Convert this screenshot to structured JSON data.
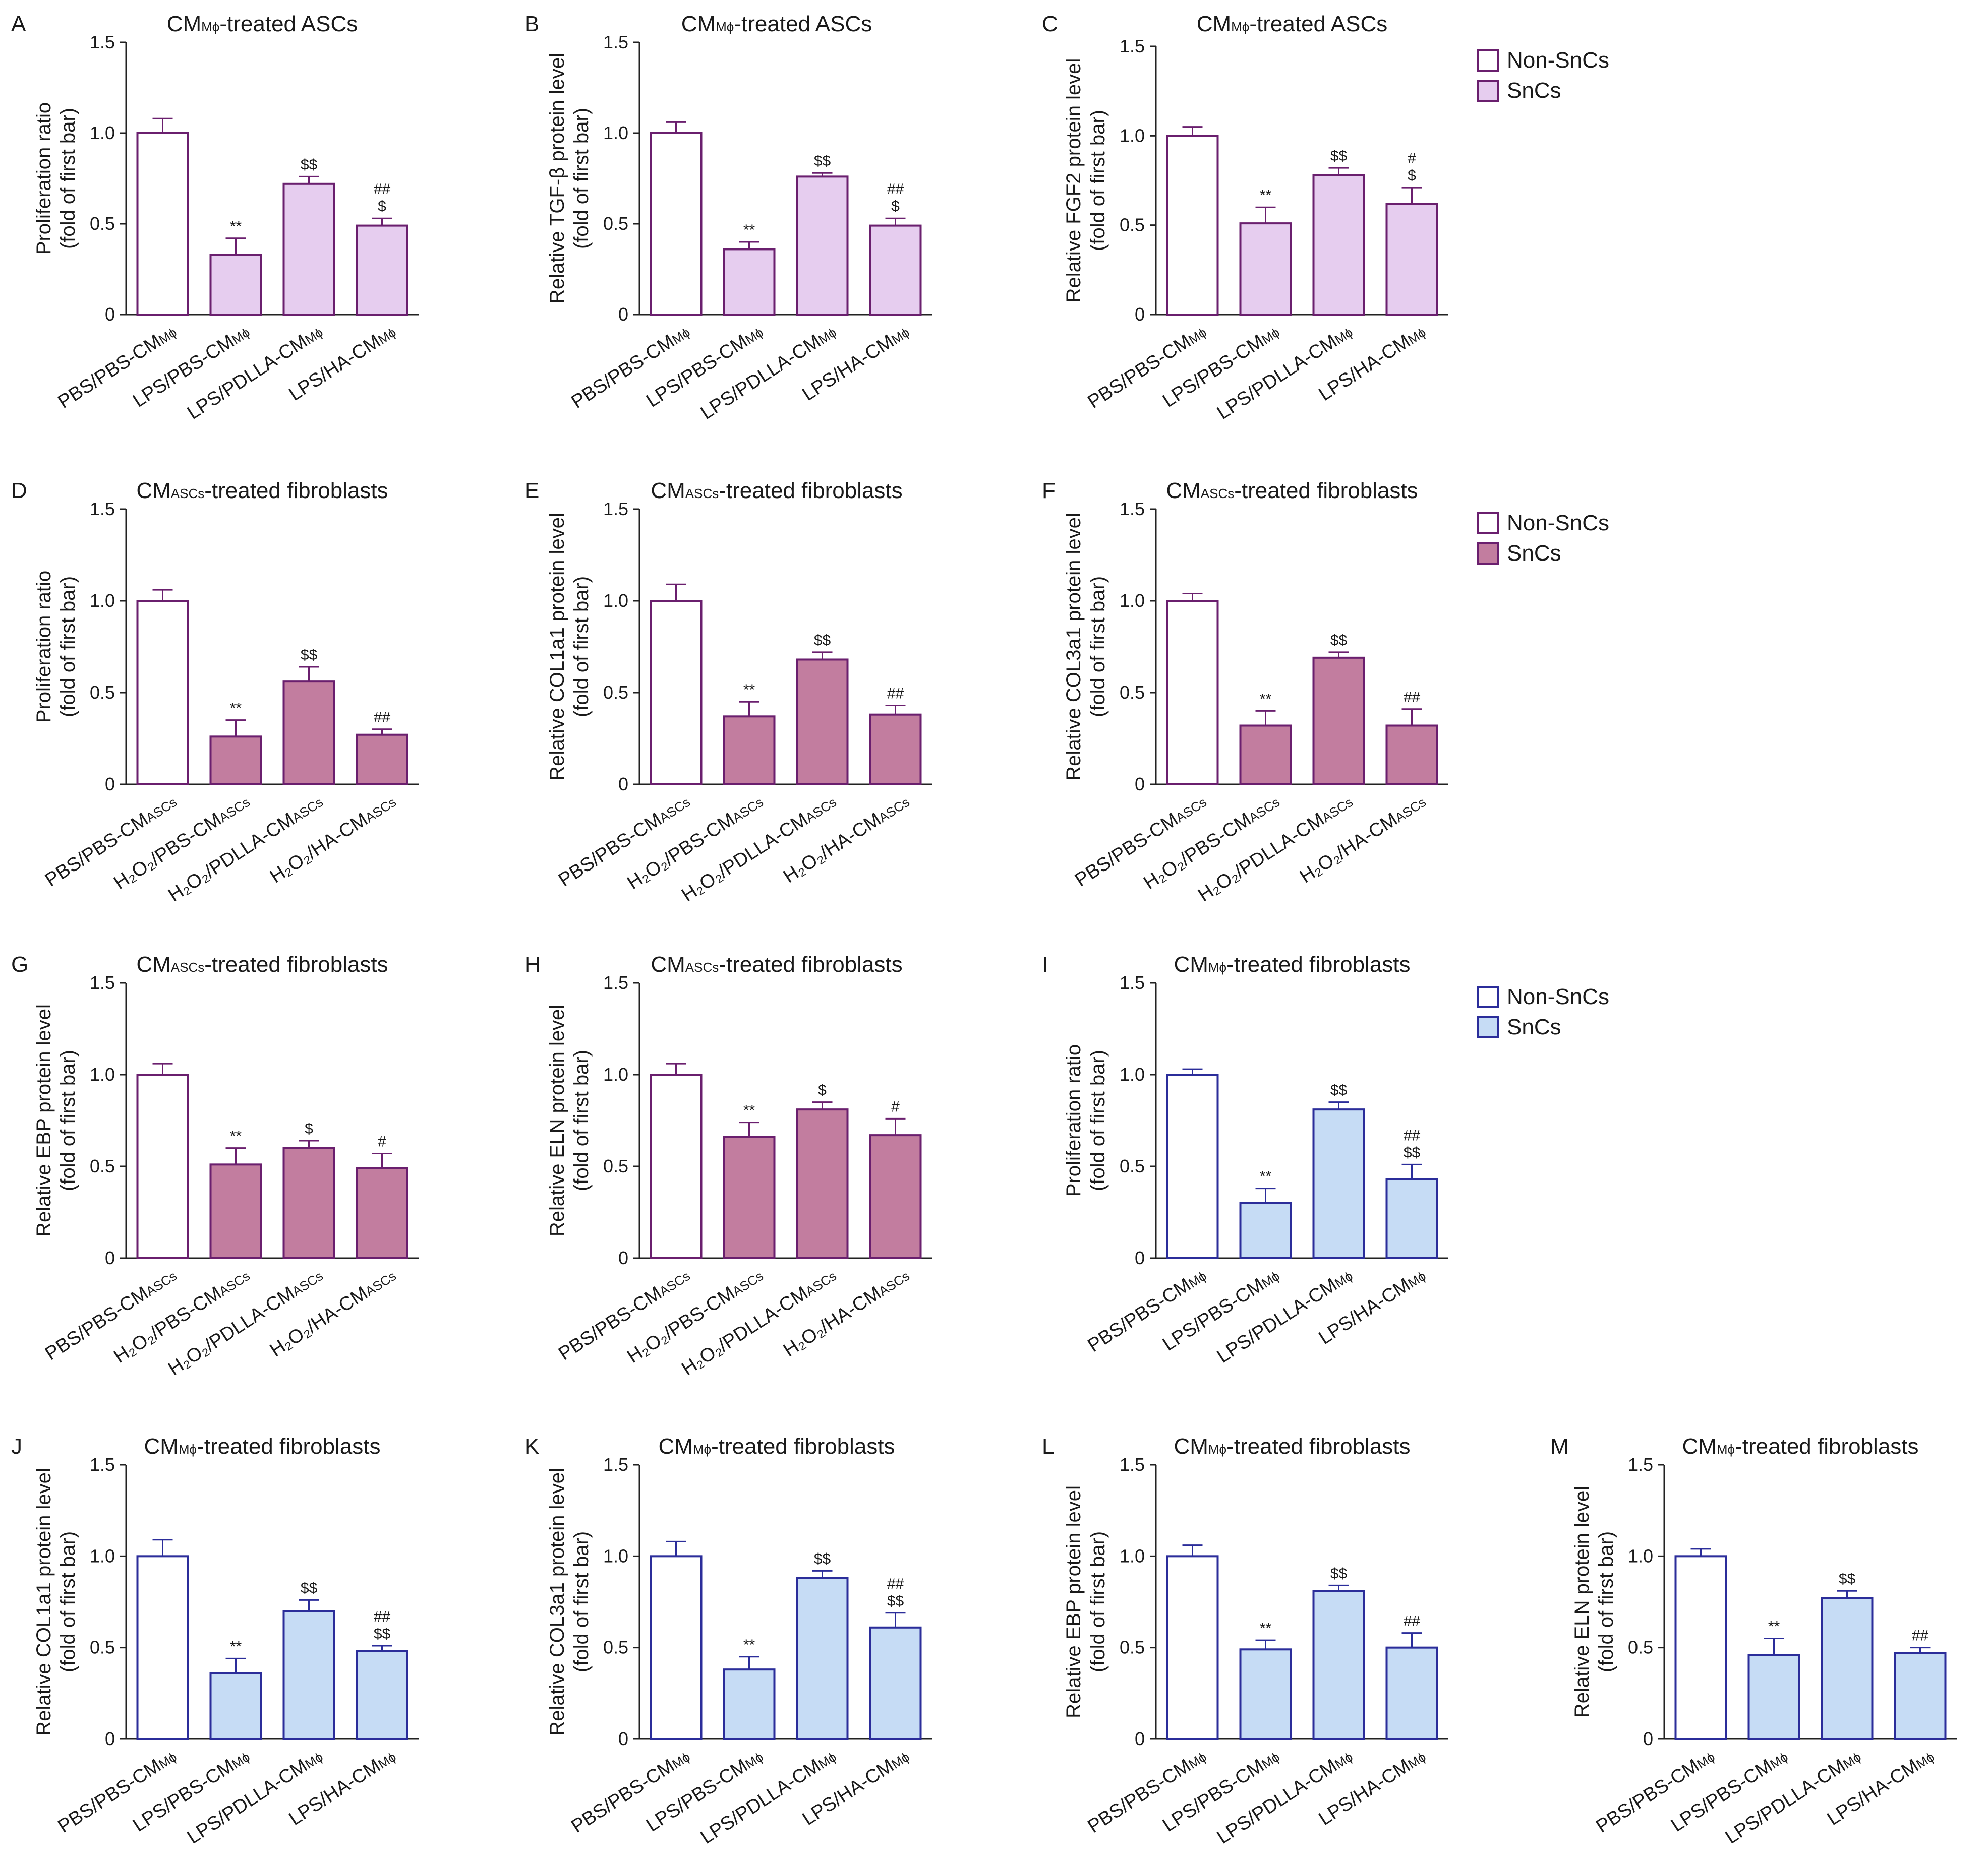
{
  "colors": {
    "purple_edge": "#6a1f6e",
    "lilac_fill": "#e6cdef",
    "mauve_fill": "#c27d9f",
    "blue_edge": "#2b2d9a",
    "blue_fill": "#c6dcf5"
  },
  "legends": [
    {
      "panel": "C",
      "items": [
        {
          "label": "Non-SnCs"
        },
        {
          "label": "SnCs"
        }
      ]
    },
    {
      "panel": "F",
      "items": [
        {
          "label": "Non-SnCs"
        },
        {
          "label": "SnCs"
        }
      ]
    },
    {
      "panel": "I",
      "items": [
        {
          "label": "Non-SnCs"
        },
        {
          "label": "SnCs"
        }
      ]
    }
  ],
  "chart_data": [
    {
      "panel": "A",
      "type": "bar",
      "title_prefix": "CM",
      "title_sub": "Mϕ",
      "title_suffix": "-treated ASCs",
      "ylabel": [
        "Proliferation ratio",
        "(fold of first bar)"
      ],
      "ylim": [
        0,
        1.5
      ],
      "yticks": [
        "0",
        "0.5",
        "1.0",
        "1.5"
      ],
      "categories": [
        [
          "PBS/PBS-CM",
          "Mϕ"
        ],
        [
          "LPS/PBS-CM",
          "Mϕ"
        ],
        [
          "LPS/PDLLA-CM",
          "Mϕ"
        ],
        [
          "LPS/HA-CM",
          "Mϕ"
        ]
      ],
      "values": [
        1.0,
        0.33,
        0.72,
        0.49
      ],
      "errors": [
        0.08,
        0.09,
        0.04,
        0.04
      ],
      "annotations": [
        [],
        [
          "**"
        ],
        [
          "$$"
        ],
        [
          "##",
          "$"
        ]
      ]
    },
    {
      "panel": "B",
      "type": "bar",
      "title_prefix": "CM",
      "title_sub": "Mϕ",
      "title_suffix": "-treated ASCs",
      "ylabel": [
        "Relative TGF-β protein level",
        "(fold of first bar)"
      ],
      "ylim": [
        0,
        1.5
      ],
      "yticks": [
        "0",
        "0.5",
        "1.0",
        "1.5"
      ],
      "categories": [
        [
          "PBS/PBS-CM",
          "Mϕ"
        ],
        [
          "LPS/PBS-CM",
          "Mϕ"
        ],
        [
          "LPS/PDLLA-CM",
          "Mϕ"
        ],
        [
          "LPS/HA-CM",
          "Mϕ"
        ]
      ],
      "values": [
        1.0,
        0.36,
        0.76,
        0.49
      ],
      "errors": [
        0.06,
        0.04,
        0.02,
        0.04
      ],
      "annotations": [
        [],
        [
          "**"
        ],
        [
          "$$"
        ],
        [
          "##",
          "$"
        ]
      ]
    },
    {
      "panel": "C",
      "type": "bar",
      "title_prefix": "CM",
      "title_sub": "Mϕ",
      "title_suffix": "-treated ASCs",
      "ylabel": [
        "Relative FGF2 protein level",
        "(fold of first bar)"
      ],
      "ylim": [
        0,
        1.5
      ],
      "yticks": [
        "0",
        "0.5",
        "1.0",
        "1.5"
      ],
      "categories": [
        [
          "PBS/PBS-CM",
          "Mϕ"
        ],
        [
          "LPS/PBS-CM",
          "Mϕ"
        ],
        [
          "LPS/PDLLA-CM",
          "Mϕ"
        ],
        [
          "LPS/HA-CM",
          "Mϕ"
        ]
      ],
      "values": [
        1.0,
        0.51,
        0.78,
        0.62
      ],
      "errors": [
        0.05,
        0.09,
        0.04,
        0.09
      ],
      "annotations": [
        [],
        [
          "**"
        ],
        [
          "$$"
        ],
        [
          "#",
          "$"
        ]
      ]
    },
    {
      "panel": "D",
      "type": "bar",
      "title_prefix": "CM",
      "title_sub": "ASCs",
      "title_suffix": "-treated fibroblasts",
      "ylabel": [
        "Proliferation ratio",
        "(fold of first bar)"
      ],
      "ylim": [
        0,
        1.5
      ],
      "yticks": [
        "0",
        "0.5",
        "1.0",
        "1.5"
      ],
      "categories": [
        [
          "PBS/PBS-CM",
          "ASCs"
        ],
        [
          "H₂O₂/PBS-CM",
          "ASCs"
        ],
        [
          "H₂O₂/PDLLA-CM",
          "ASCs"
        ],
        [
          "H₂O₂/HA-CM",
          "ASCs"
        ]
      ],
      "values": [
        1.0,
        0.26,
        0.56,
        0.27
      ],
      "errors": [
        0.06,
        0.09,
        0.08,
        0.03
      ],
      "annotations": [
        [],
        [
          "**"
        ],
        [
          "$$"
        ],
        [
          "##"
        ]
      ]
    },
    {
      "panel": "E",
      "type": "bar",
      "title_prefix": "CM",
      "title_sub": "ASCs",
      "title_suffix": "-treated fibroblasts",
      "ylabel": [
        "Relative COL1a1 protein level",
        "(fold of first bar)"
      ],
      "ylim": [
        0,
        1.5
      ],
      "yticks": [
        "0",
        "0.5",
        "1.0",
        "1.5"
      ],
      "categories": [
        [
          "PBS/PBS-CM",
          "ASCs"
        ],
        [
          "H₂O₂/PBS-CM",
          "ASCs"
        ],
        [
          "H₂O₂/PDLLA-CM",
          "ASCs"
        ],
        [
          "H₂O₂/HA-CM",
          "ASCs"
        ]
      ],
      "values": [
        1.0,
        0.37,
        0.68,
        0.38
      ],
      "errors": [
        0.09,
        0.08,
        0.04,
        0.05
      ],
      "annotations": [
        [],
        [
          "**"
        ],
        [
          "$$"
        ],
        [
          "##"
        ]
      ]
    },
    {
      "panel": "F",
      "type": "bar",
      "title_prefix": "CM",
      "title_sub": "ASCs",
      "title_suffix": "-treated fibroblasts",
      "ylabel": [
        "Relative COL3a1 protein level",
        "(fold of first bar)"
      ],
      "ylim": [
        0,
        1.5
      ],
      "yticks": [
        "0",
        "0.5",
        "1.0",
        "1.5"
      ],
      "categories": [
        [
          "PBS/PBS-CM",
          "ASCs"
        ],
        [
          "H₂O₂/PBS-CM",
          "ASCs"
        ],
        [
          "H₂O₂/PDLLA-CM",
          "ASCs"
        ],
        [
          "H₂O₂/HA-CM",
          "ASCs"
        ]
      ],
      "values": [
        1.0,
        0.32,
        0.69,
        0.32
      ],
      "errors": [
        0.04,
        0.08,
        0.03,
        0.09
      ],
      "annotations": [
        [],
        [
          "**"
        ],
        [
          "$$"
        ],
        [
          "##"
        ]
      ]
    },
    {
      "panel": "G",
      "type": "bar",
      "title_prefix": "CM",
      "title_sub": "ASCs",
      "title_suffix": "-treated fibroblasts",
      "ylabel": [
        "Relative EBP protein level",
        "(fold of first bar)"
      ],
      "ylim": [
        0,
        1.5
      ],
      "yticks": [
        "0",
        "0.5",
        "1.0",
        "1.5"
      ],
      "categories": [
        [
          "PBS/PBS-CM",
          "ASCs"
        ],
        [
          "H₂O₂/PBS-CM",
          "ASCs"
        ],
        [
          "H₂O₂/PDLLA-CM",
          "ASCs"
        ],
        [
          "H₂O₂/HA-CM",
          "ASCs"
        ]
      ],
      "values": [
        1.0,
        0.51,
        0.6,
        0.49
      ],
      "errors": [
        0.06,
        0.09,
        0.04,
        0.08
      ],
      "annotations": [
        [],
        [
          "**"
        ],
        [
          "$"
        ],
        [
          "#"
        ]
      ]
    },
    {
      "panel": "H",
      "type": "bar",
      "title_prefix": "CM",
      "title_sub": "ASCs",
      "title_suffix": "-treated fibroblasts",
      "ylabel": [
        "Relative ELN protein level",
        "(fold of first bar)"
      ],
      "ylim": [
        0,
        1.5
      ],
      "yticks": [
        "0",
        "0.5",
        "1.0",
        "1.5"
      ],
      "categories": [
        [
          "PBS/PBS-CM",
          "ASCs"
        ],
        [
          "H₂O₂/PBS-CM",
          "ASCs"
        ],
        [
          "H₂O₂/PDLLA-CM",
          "ASCs"
        ],
        [
          "H₂O₂/HA-CM",
          "ASCs"
        ]
      ],
      "values": [
        1.0,
        0.66,
        0.81,
        0.67
      ],
      "errors": [
        0.06,
        0.08,
        0.04,
        0.09
      ],
      "annotations": [
        [],
        [
          "**"
        ],
        [
          "$"
        ],
        [
          "#"
        ]
      ]
    },
    {
      "panel": "I",
      "type": "bar",
      "title_prefix": "CM",
      "title_sub": "Mϕ",
      "title_suffix": "-treated fibroblasts",
      "ylabel": [
        "Proliferation ratio",
        "(fold of first bar)"
      ],
      "ylim": [
        0,
        1.5
      ],
      "yticks": [
        "0",
        "0.5",
        "1.0",
        "1.5"
      ],
      "categories": [
        [
          "PBS/PBS-CM",
          "Mϕ"
        ],
        [
          "LPS/PBS-CM",
          "Mϕ"
        ],
        [
          "LPS/PDLLA-CM",
          "Mϕ"
        ],
        [
          "LPS/HA-CM",
          "Mϕ"
        ]
      ],
      "values": [
        1.0,
        0.3,
        0.81,
        0.43
      ],
      "errors": [
        0.03,
        0.08,
        0.04,
        0.08
      ],
      "annotations": [
        [],
        [
          "**"
        ],
        [
          "$$"
        ],
        [
          "##",
          "$$"
        ]
      ]
    },
    {
      "panel": "J",
      "type": "bar",
      "title_prefix": "CM",
      "title_sub": "Mϕ",
      "title_suffix": "-treated fibroblasts",
      "ylabel": [
        "Relative COL1a1 protein level",
        "(fold of first bar)"
      ],
      "ylim": [
        0,
        1.5
      ],
      "yticks": [
        "0",
        "0.5",
        "1.0",
        "1.5"
      ],
      "categories": [
        [
          "PBS/PBS-CM",
          "Mϕ"
        ],
        [
          "LPS/PBS-CM",
          "Mϕ"
        ],
        [
          "LPS/PDLLA-CM",
          "Mϕ"
        ],
        [
          "LPS/HA-CM",
          "Mϕ"
        ]
      ],
      "values": [
        1.0,
        0.36,
        0.7,
        0.48
      ],
      "errors": [
        0.09,
        0.08,
        0.06,
        0.03
      ],
      "annotations": [
        [],
        [
          "**"
        ],
        [
          "$$"
        ],
        [
          "##",
          "$$"
        ]
      ]
    },
    {
      "panel": "K",
      "type": "bar",
      "title_prefix": "CM",
      "title_sub": "Mϕ",
      "title_suffix": "-treated fibroblasts",
      "ylabel": [
        "Relative COL3a1 protein level",
        "(fold of first bar)"
      ],
      "ylim": [
        0,
        1.5
      ],
      "yticks": [
        "0",
        "0.5",
        "1.0",
        "1.5"
      ],
      "categories": [
        [
          "PBS/PBS-CM",
          "Mϕ"
        ],
        [
          "LPS/PBS-CM",
          "Mϕ"
        ],
        [
          "LPS/PDLLA-CM",
          "Mϕ"
        ],
        [
          "LPS/HA-CM",
          "Mϕ"
        ]
      ],
      "values": [
        1.0,
        0.38,
        0.88,
        0.61
      ],
      "errors": [
        0.08,
        0.07,
        0.04,
        0.08
      ],
      "annotations": [
        [],
        [
          "**"
        ],
        [
          "$$"
        ],
        [
          "##",
          "$$"
        ]
      ]
    },
    {
      "panel": "L",
      "type": "bar",
      "title_prefix": "CM",
      "title_sub": "Mϕ",
      "title_suffix": "-treated fibroblasts",
      "ylabel": [
        "Relative EBP protein level",
        "(fold of first bar)"
      ],
      "ylim": [
        0,
        1.5
      ],
      "yticks": [
        "0",
        "0.5",
        "1.0",
        "1.5"
      ],
      "categories": [
        [
          "PBS/PBS-CM",
          "Mϕ"
        ],
        [
          "LPS/PBS-CM",
          "Mϕ"
        ],
        [
          "LPS/PDLLA-CM",
          "Mϕ"
        ],
        [
          "LPS/HA-CM",
          "Mϕ"
        ]
      ],
      "values": [
        1.0,
        0.49,
        0.81,
        0.5
      ],
      "errors": [
        0.06,
        0.05,
        0.03,
        0.08
      ],
      "annotations": [
        [],
        [
          "**"
        ],
        [
          "$$"
        ],
        [
          "##"
        ]
      ]
    },
    {
      "panel": "M",
      "type": "bar",
      "title_prefix": "CM",
      "title_sub": "Mϕ",
      "title_suffix": "-treated fibroblasts",
      "ylabel": [
        "Relative ELN protein level",
        "(fold of first bar)"
      ],
      "ylim": [
        0,
        1.5
      ],
      "yticks": [
        "0",
        "0.5",
        "1.0",
        "1.5"
      ],
      "categories": [
        [
          "PBS/PBS-CM",
          "Mϕ"
        ],
        [
          "LPS/PBS-CM",
          "Mϕ"
        ],
        [
          "LPS/PDLLA-CM",
          "Mϕ"
        ],
        [
          "LPS/HA-CM",
          "Mϕ"
        ]
      ],
      "values": [
        1.0,
        0.46,
        0.77,
        0.47
      ],
      "errors": [
        0.04,
        0.09,
        0.04,
        0.03
      ],
      "annotations": [
        [],
        [
          "**"
        ],
        [
          "$$"
        ],
        [
          "##"
        ]
      ]
    }
  ]
}
